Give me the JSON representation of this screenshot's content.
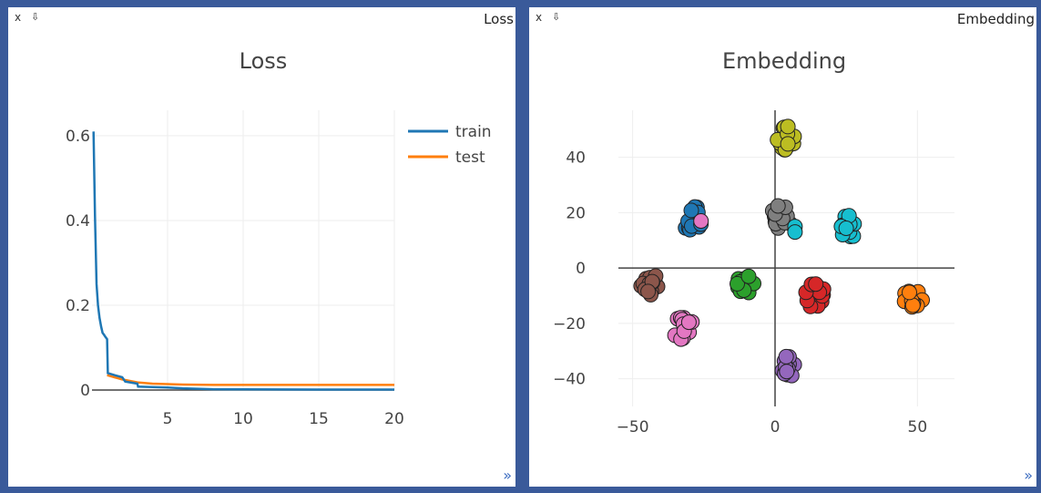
{
  "loss_pane": {
    "close_label": "x",
    "minimize_label": "⇩",
    "window_title": "Loss",
    "resize_label": "»"
  },
  "embedding_pane": {
    "close_label": "x",
    "minimize_label": "⇩",
    "window_title": "Embedding",
    "resize_label": "»"
  },
  "colors": {
    "train": "#1f77b4",
    "test": "#ff7f0e",
    "classes": [
      "#1f77b4",
      "#ff7f0e",
      "#2ca02c",
      "#d62728",
      "#9467bd",
      "#8c564b",
      "#e377c2",
      "#7f7f7f",
      "#bcbd22",
      "#17becf"
    ]
  },
  "chart_data": [
    {
      "type": "line",
      "title": "Loss",
      "xlabel": "",
      "ylabel": "",
      "xlim": [
        0,
        20
      ],
      "ylim": [
        0,
        0.6
      ],
      "x_ticks": [
        "5",
        "10",
        "15",
        "20"
      ],
      "y_ticks": [
        "0",
        "0.2",
        "0.4",
        "0.6"
      ],
      "grid": true,
      "legend": "top-right",
      "series": [
        {
          "name": "train",
          "x": [
            0.1,
            0.2,
            0.3,
            0.4,
            0.5,
            0.6,
            0.7,
            0.8,
            0.9,
            1.0,
            1.05,
            1.5,
            2.0,
            2.2,
            3.0,
            3.05,
            4.0,
            5.0,
            6.0,
            7.0,
            8.0,
            10.0,
            15.0,
            20.0
          ],
          "y": [
            0.61,
            0.41,
            0.25,
            0.2,
            0.17,
            0.15,
            0.135,
            0.13,
            0.125,
            0.12,
            0.04,
            0.035,
            0.03,
            0.02,
            0.015,
            0.008,
            0.007,
            0.006,
            0.004,
            0.003,
            0.002,
            0.0015,
            0.001,
            0.001
          ]
        },
        {
          "name": "test",
          "x": [
            1.0,
            2.0,
            3.0,
            4.0,
            5.0,
            6.0,
            8.0,
            10.0,
            15.0,
            20.0
          ],
          "y": [
            0.035,
            0.025,
            0.018,
            0.015,
            0.014,
            0.013,
            0.012,
            0.012,
            0.012,
            0.012
          ]
        }
      ]
    },
    {
      "type": "scatter",
      "title": "Embedding",
      "xlabel": "",
      "ylabel": "",
      "xlim": [
        -55,
        63
      ],
      "ylim": [
        -50,
        57
      ],
      "x_ticks": [
        "−50",
        "0",
        "50"
      ],
      "y_ticks": [
        "40",
        "20",
        "0",
        "−20",
        "−40"
      ],
      "grid": true,
      "clusters": [
        {
          "class": 0,
          "cx": -29,
          "cy": 18,
          "spread": 2.6
        },
        {
          "class": 1,
          "cx": 49,
          "cy": -11,
          "spread": 2.8
        },
        {
          "class": 2,
          "cx": -10,
          "cy": -6,
          "spread": 2.4
        },
        {
          "class": 3,
          "cx": 14,
          "cy": -10,
          "spread": 2.6
        },
        {
          "class": 4,
          "cx": 5,
          "cy": -35,
          "spread": 2.2
        },
        {
          "class": 5,
          "cx": -44,
          "cy": -6,
          "spread": 2.4
        },
        {
          "class": 6,
          "cx": -32,
          "cy": -22,
          "spread": 2.6
        },
        {
          "class": 7,
          "cx": 2,
          "cy": 18,
          "spread": 2.6
        },
        {
          "class": 8,
          "cx": 4,
          "cy": 47,
          "spread": 2.4
        },
        {
          "class": 9,
          "cx": 26,
          "cy": 15,
          "spread": 2.4
        }
      ],
      "outliers": [
        {
          "class": 6,
          "x": -26,
          "y": 17
        },
        {
          "class": 9,
          "x": 7,
          "y": 15
        },
        {
          "class": 9,
          "x": 7,
          "y": 13
        }
      ]
    }
  ]
}
